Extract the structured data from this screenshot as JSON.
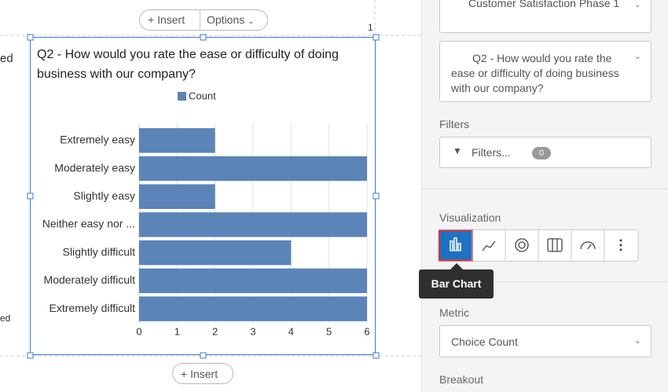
{
  "toolbar": {
    "insert": "Insert",
    "options": "Options"
  },
  "page_number": "1",
  "left_fragments": [
    "ed",
    "ed"
  ],
  "chart_data": {
    "type": "bar",
    "orientation": "horizontal",
    "title": "Q2 - How would you rate the ease or difficulty of doing business with our company?",
    "categories": [
      "Extremely easy",
      "Moderately easy",
      "Slightly easy",
      "Neither easy nor ...",
      "Slightly difficult",
      "Moderately difficult",
      "Extremely difficult"
    ],
    "series": [
      {
        "name": "Count",
        "color": "#5b84b8",
        "values": [
          2,
          6,
          2,
          6,
          4,
          6,
          6
        ]
      }
    ],
    "xlim": [
      0,
      6
    ],
    "xticks": [
      0,
      1,
      2,
      3,
      4,
      5,
      6
    ],
    "grid": true
  },
  "bottom_insert": "Insert",
  "sidebar": {
    "source": "Customer Satisfaction Phase 1",
    "question": "Q2 - How would you rate the ease or difficulty of doing business with our company?",
    "filters_label": "Filters",
    "filters_button": "Filters...",
    "filters_count": "0",
    "visualization_label": "Visualization",
    "tooltip": "Bar Chart",
    "metric_label": "Metric",
    "metric_value": "Choice Count",
    "breakout_label": "Breakout"
  }
}
